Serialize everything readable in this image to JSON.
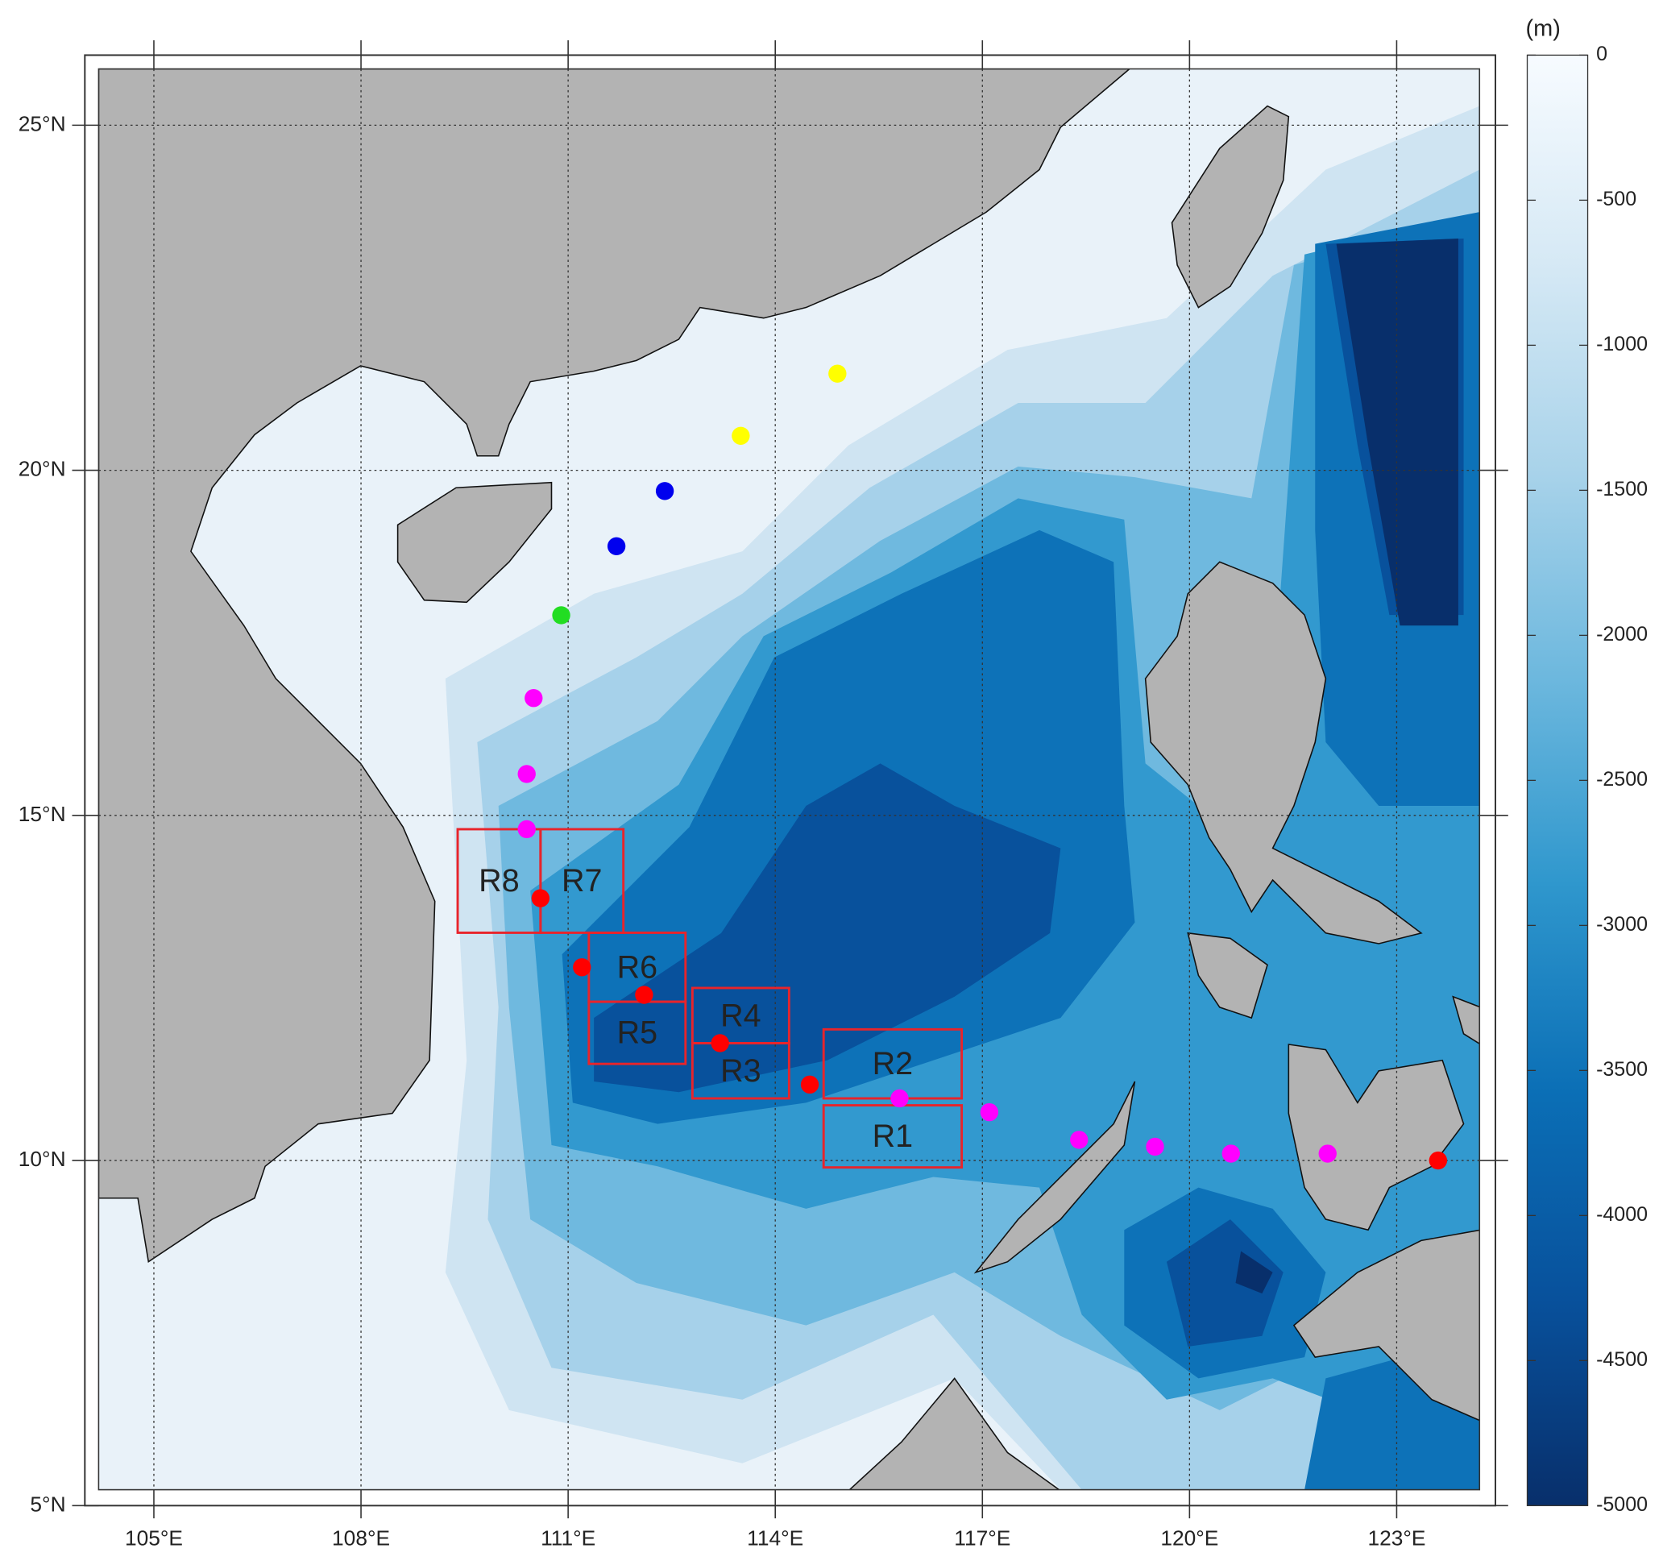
{
  "chart_data": {
    "type": "map",
    "xlim": [
      104.2,
      124.2
    ],
    "ylim": [
      5,
      25.8
    ],
    "xticks": [
      {
        "value": 105,
        "label": "105°E"
      },
      {
        "value": 108,
        "label": "108°E"
      },
      {
        "value": 111,
        "label": "111°E"
      },
      {
        "value": 114,
        "label": "114°E"
      },
      {
        "value": 117,
        "label": "117°E"
      },
      {
        "value": 120,
        "label": "120°E"
      },
      {
        "value": 123,
        "label": "123°E"
      }
    ],
    "yticks": [
      {
        "value": 5,
        "label": "5°N"
      },
      {
        "value": 10,
        "label": "10°N"
      },
      {
        "value": 15,
        "label": "15°N"
      },
      {
        "value": 20,
        "label": "20°N"
      },
      {
        "value": 25,
        "label": "25°N"
      }
    ],
    "grid": true,
    "colorbar_label": "(m)",
    "clim": [
      -5000,
      0
    ],
    "cticks": [
      0,
      -500,
      -1000,
      -1500,
      -2000,
      -2500,
      -3000,
      -3500,
      -4000,
      -4500,
      -5000
    ],
    "colormap": [
      "#f7fbff",
      "#d6e9f5",
      "#a9d3ea",
      "#6db8de",
      "#2f97cd",
      "#0b6fb6",
      "#08519c",
      "#082f6b"
    ],
    "region_color": "#e8242b",
    "regions": [
      {
        "label": "R1",
        "lon": [
          114.7,
          116.7
        ],
        "lat": [
          9.9,
          10.8
        ]
      },
      {
        "label": "R2",
        "lon": [
          114.7,
          116.7
        ],
        "lat": [
          10.9,
          11.9
        ]
      },
      {
        "label": "R3",
        "lon": [
          112.8,
          114.2
        ],
        "lat": [
          10.9,
          11.7
        ]
      },
      {
        "label": "R4",
        "lon": [
          112.8,
          114.2
        ],
        "lat": [
          11.7,
          12.5
        ]
      },
      {
        "label": "R5",
        "lon": [
          111.3,
          112.7
        ],
        "lat": [
          11.4,
          12.3
        ]
      },
      {
        "label": "R6",
        "lon": [
          111.3,
          112.7
        ],
        "lat": [
          12.3,
          13.3
        ]
      },
      {
        "label": "R7",
        "lon": [
          110.6,
          111.8
        ],
        "lat": [
          13.3,
          14.8
        ]
      },
      {
        "label": "R8",
        "lon": [
          109.4,
          110.6
        ],
        "lat": [
          13.3,
          14.8
        ]
      }
    ],
    "series": [
      {
        "color": "#ffff00",
        "lon": [
          114.9,
          113.5
        ],
        "lat": [
          21.4,
          20.5
        ]
      },
      {
        "color": "#0000ee",
        "lon": [
          112.4,
          111.7
        ],
        "lat": [
          19.7,
          18.9
        ]
      },
      {
        "color": "#22dd22",
        "lon": [
          110.9
        ],
        "lat": [
          17.9
        ]
      },
      {
        "color": "#ff00ff",
        "lon": [
          110.5,
          110.4,
          110.4,
          115.8,
          117.1,
          118.4,
          119.5,
          120.6,
          122.0
        ],
        "lat": [
          16.7,
          15.6,
          14.8,
          10.9,
          10.7,
          10.3,
          10.2,
          10.1,
          10.1
        ]
      },
      {
        "color": "#ff0000",
        "lon": [
          110.6,
          111.2,
          112.1,
          113.2,
          114.5,
          123.6
        ],
        "lat": [
          13.8,
          12.8,
          12.4,
          11.7,
          11.1,
          10.0
        ]
      }
    ]
  }
}
